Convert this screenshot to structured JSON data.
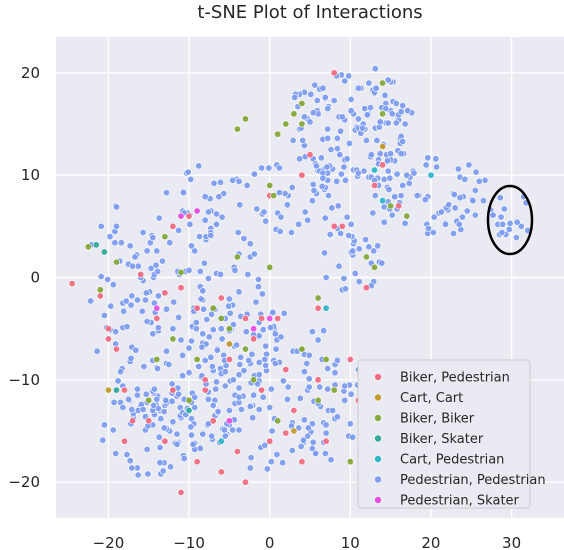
{
  "chart_data": {
    "type": "scatter",
    "title": "t-SNE Plot of Interactions",
    "xlabel": "",
    "ylabel": "",
    "xlim": [
      -26.5,
      36.5
    ],
    "ylim": [
      -23.5,
      23.5
    ],
    "xticks": [
      -20,
      -10,
      0,
      10,
      20,
      30
    ],
    "yticks": [
      -20,
      -10,
      0,
      10,
      20
    ],
    "grid": true,
    "legend": "lower-right",
    "series": [
      {
        "name": "Biker, Pedestrian",
        "color": "#f06b82",
        "points": [
          [
            -24.5,
            -0.6
          ],
          [
            -21,
            -1.8
          ],
          [
            -20,
            -5
          ],
          [
            -19,
            -7
          ],
          [
            -18,
            -11
          ],
          [
            -16,
            0.3
          ],
          [
            -15,
            -14
          ],
          [
            -14,
            -4
          ],
          [
            -13,
            -16
          ],
          [
            -12,
            5
          ],
          [
            -11,
            -1
          ],
          [
            -11,
            -21
          ],
          [
            -10,
            6
          ],
          [
            -9,
            -3
          ],
          [
            -9,
            -18
          ],
          [
            -8,
            -11
          ],
          [
            -7,
            -14
          ],
          [
            -6,
            -2
          ],
          [
            -5,
            -8
          ],
          [
            -4,
            -17
          ],
          [
            -3,
            -4
          ],
          [
            -2,
            -6
          ],
          [
            -1,
            -11
          ],
          [
            0,
            8
          ],
          [
            1,
            -4
          ],
          [
            2,
            -9
          ],
          [
            3,
            -13
          ],
          [
            4,
            10
          ],
          [
            5,
            12
          ],
          [
            6,
            -3
          ],
          [
            7,
            -16
          ],
          [
            8,
            20
          ],
          [
            9,
            5
          ],
          [
            10,
            -8
          ],
          [
            11,
            -12
          ],
          [
            12,
            -1
          ],
          [
            13,
            9
          ],
          [
            14,
            11
          ],
          [
            -17,
            -14
          ],
          [
            -12,
            -11
          ],
          [
            -6,
            -19
          ],
          [
            0,
            -16
          ],
          [
            4,
            -18
          ],
          [
            2,
            -15.2
          ],
          [
            -8,
            -10
          ],
          [
            6,
            -10
          ],
          [
            -1,
            -4
          ],
          [
            -18,
            -16
          ],
          [
            -13,
            -1.5
          ],
          [
            -3,
            -20
          ],
          [
            12,
            -14
          ],
          [
            16,
            7
          ],
          [
            -20,
            -6
          ],
          [
            8,
            5
          ]
        ]
      },
      {
        "name": "Cart, Cart",
        "color": "#c39a2f",
        "points": [
          [
            14,
            12.8
          ],
          [
            -20,
            -11
          ],
          [
            3,
            -15
          ],
          [
            -5,
            -6.5
          ]
        ]
      },
      {
        "name": "Biker, Biker",
        "color": "#85a839",
        "points": [
          [
            -22.5,
            3
          ],
          [
            -21,
            -1.2
          ],
          [
            -19,
            1.5
          ],
          [
            -14,
            -8
          ],
          [
            -13,
            4
          ],
          [
            -11,
            0.5
          ],
          [
            -10,
            -12
          ],
          [
            -9,
            -8
          ],
          [
            -7,
            -3
          ],
          [
            -5,
            -5
          ],
          [
            -4,
            2
          ],
          [
            -3,
            -7
          ],
          [
            -2,
            -10
          ],
          [
            0,
            1
          ],
          [
            1,
            -14
          ],
          [
            2,
            15
          ],
          [
            3,
            16
          ],
          [
            4,
            17
          ],
          [
            -4,
            14.5
          ],
          [
            -3,
            15.5
          ],
          [
            0,
            9
          ],
          [
            0.5,
            8
          ],
          [
            4,
            -7
          ],
          [
            6,
            -2
          ],
          [
            7,
            -8
          ],
          [
            10,
            -18
          ],
          [
            12,
            2
          ],
          [
            13,
            1
          ],
          [
            15,
            7
          ],
          [
            17,
            6
          ],
          [
            14,
            19
          ],
          [
            14,
            16
          ],
          [
            6,
            -12
          ],
          [
            -15,
            -12
          ],
          [
            -6,
            -4
          ],
          [
            8,
            -11
          ],
          [
            1,
            14
          ],
          [
            4,
            15
          ],
          [
            -12,
            -6
          ]
        ]
      },
      {
        "name": "Biker, Skater",
        "color": "#2fa99a",
        "points": [
          [
            -21.5,
            3.2
          ],
          [
            -20.5,
            2.5
          ],
          [
            -19,
            -11
          ],
          [
            -10,
            -13
          ]
        ]
      },
      {
        "name": "Cart, Pedestrian",
        "color": "#2fb5c9",
        "points": [
          [
            13,
            10.5
          ],
          [
            14,
            7.5
          ],
          [
            20,
            10
          ],
          [
            -6,
            -16
          ],
          [
            7,
            -3
          ]
        ]
      },
      {
        "name": "Pedestrian, Pedestrian",
        "color": "#7e9cf0",
        "points": []
      },
      {
        "name": "Pedestrian, Skater",
        "color": "#e84ee0",
        "points": [
          [
            -11,
            6
          ],
          [
            -9,
            6.5
          ],
          [
            -2,
            -5
          ],
          [
            0,
            -4
          ],
          [
            -5,
            -14
          ],
          [
            -14,
            -3
          ]
        ]
      }
    ]
  }
}
